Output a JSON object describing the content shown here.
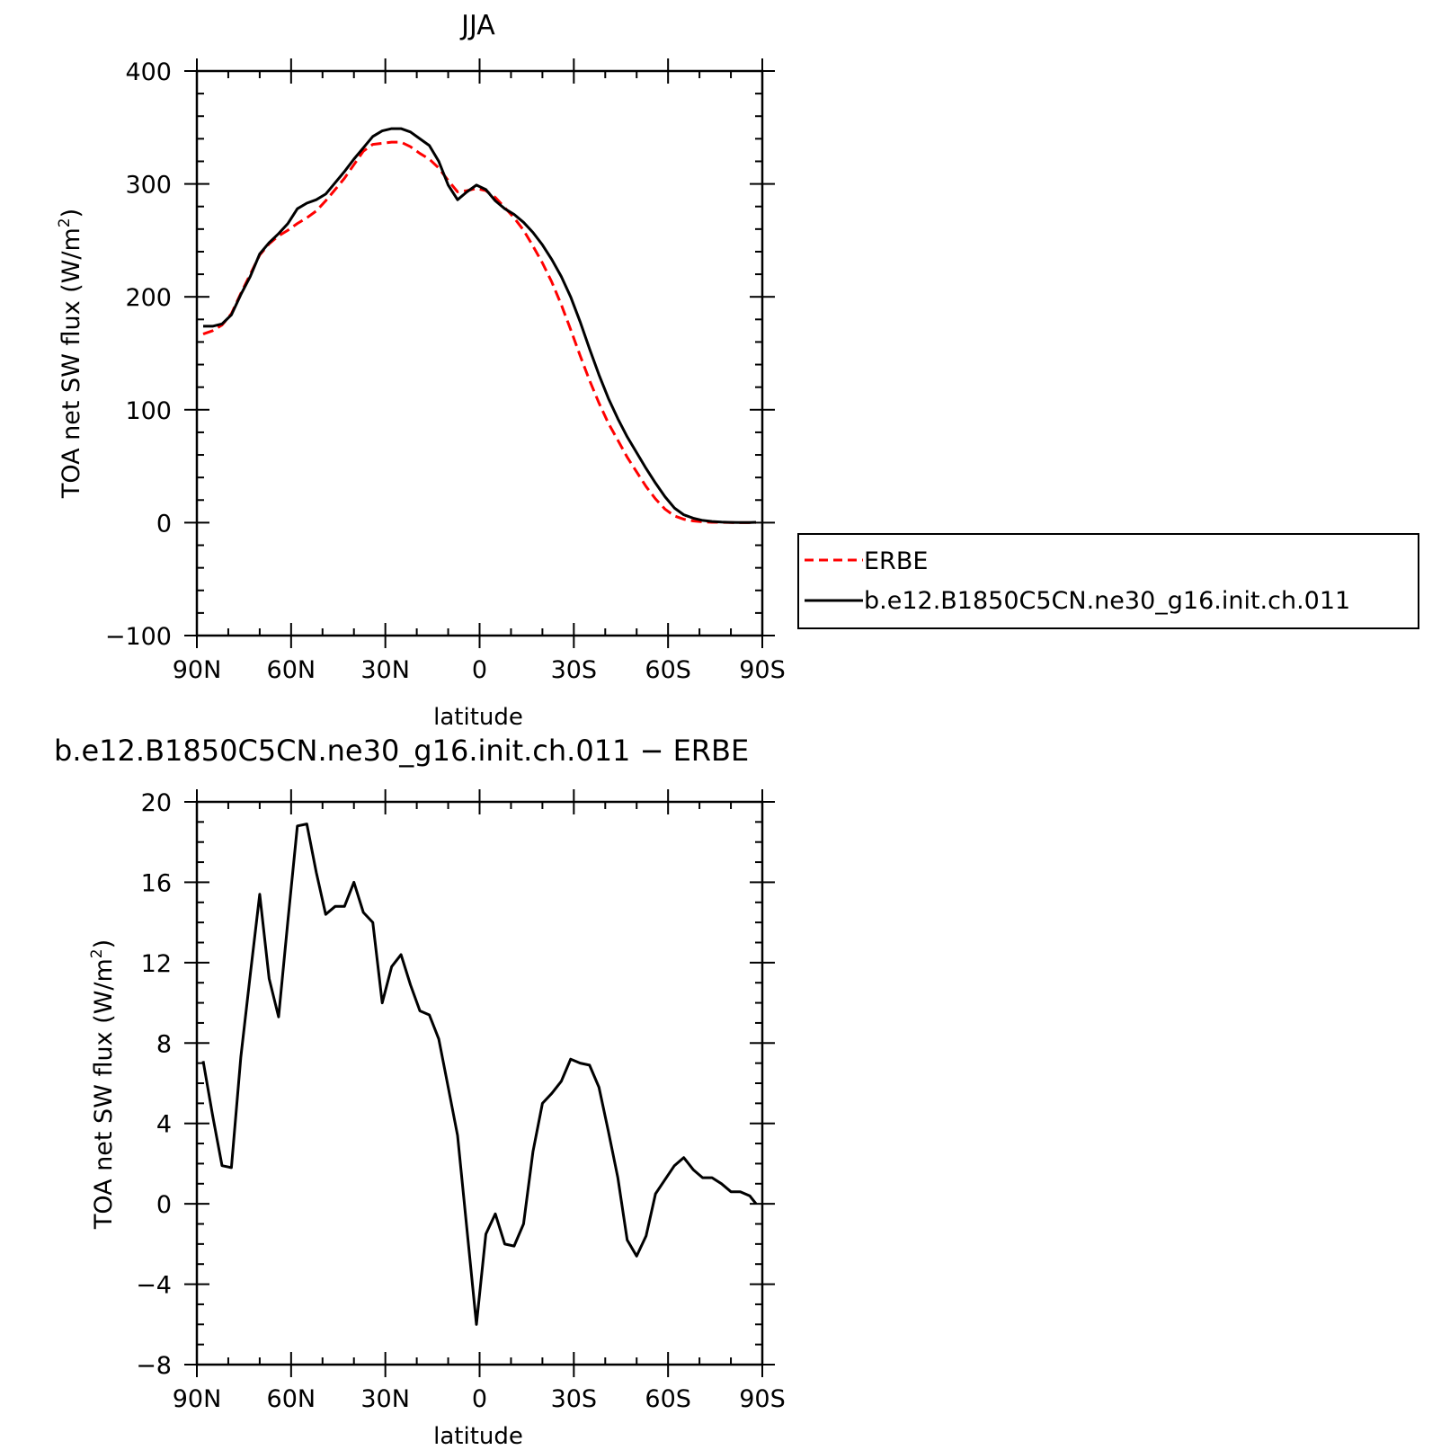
{
  "chart_data": [
    {
      "type": "line",
      "title": "JJA",
      "xlabel": "latitude",
      "ylabel_main": "TOA net SW flux (W/m",
      "ylabel_sup": "2",
      "ylabel_close": ")",
      "xlim": [
        90,
        -90
      ],
      "ylim": [
        -100,
        400
      ],
      "x_ticks": [
        {
          "value": 90,
          "label": "90N"
        },
        {
          "value": 60,
          "label": "60N"
        },
        {
          "value": 30,
          "label": "30N"
        },
        {
          "value": 0,
          "label": "0"
        },
        {
          "value": -30,
          "label": "30S"
        },
        {
          "value": -60,
          "label": "60S"
        },
        {
          "value": -90,
          "label": "90S"
        }
      ],
      "y_ticks": [
        {
          "value": 400,
          "label": "400"
        },
        {
          "value": 300,
          "label": "300"
        },
        {
          "value": 200,
          "label": "200"
        },
        {
          "value": 100,
          "label": "100"
        },
        {
          "value": 0,
          "label": "0"
        },
        {
          "value": -100,
          "label": "−100"
        }
      ],
      "legend": {
        "position": "right",
        "entries": [
          {
            "label": "ERBE",
            "color": "#ff0000",
            "dash": true
          },
          {
            "label": "b.e12.B1850C5CN.ne30_g16.init.ch.011",
            "color": "#000000",
            "dash": false
          }
        ]
      },
      "series": [
        {
          "name": "ERBE",
          "color": "#ff0000",
          "style": "dashed",
          "x": [
            88,
            85,
            82,
            79,
            76,
            73,
            70,
            67,
            64,
            61,
            58,
            55,
            52,
            49,
            46,
            43,
            40,
            37,
            34,
            31,
            28,
            25,
            22,
            19,
            16,
            13,
            10,
            7,
            4,
            1,
            -2,
            -5,
            -8,
            -11,
            -14,
            -17,
            -20,
            -23,
            -26,
            -29,
            -32,
            -35,
            -38,
            -41,
            -44,
            -47,
            -50,
            -53,
            -56,
            -59,
            -62,
            -65,
            -68,
            -71,
            -74,
            -77,
            -80,
            -83,
            -86,
            -88
          ],
          "y": [
            167,
            170,
            175,
            185,
            203,
            220,
            237,
            247,
            254,
            259,
            265,
            270,
            276,
            285,
            295,
            305,
            317,
            329,
            335,
            336,
            337,
            337,
            333,
            327,
            322,
            314,
            303,
            293,
            294,
            296,
            294,
            288,
            279,
            270,
            259,
            245,
            230,
            213,
            193,
            171,
            148,
            126,
            106,
            88,
            73,
            58,
            45,
            32,
            21,
            12,
            6,
            3,
            1.5,
            0.7,
            0.3,
            0.2,
            0.1,
            0,
            0,
            0
          ]
        },
        {
          "name": "b.e12.B1850C5CN.ne30_g16.init.ch.011",
          "color": "#000000",
          "style": "solid",
          "x": [
            88,
            85,
            82,
            79,
            76,
            73,
            70,
            67,
            64,
            61,
            58,
            55,
            52,
            49,
            46,
            43,
            40,
            37,
            34,
            31,
            28,
            25,
            22,
            19,
            16,
            13,
            10,
            7,
            4,
            1,
            -2,
            -5,
            -8,
            -11,
            -14,
            -17,
            -20,
            -23,
            -26,
            -29,
            -32,
            -35,
            -38,
            -41,
            -44,
            -47,
            -50,
            -53,
            -56,
            -59,
            -62,
            -65,
            -68,
            -71,
            -74,
            -77,
            -80,
            -83,
            -86,
            -88
          ],
          "y": [
            174,
            174,
            176,
            184,
            202,
            218,
            238,
            248,
            256,
            265,
            278,
            283,
            286,
            291,
            301,
            311,
            322,
            332,
            342,
            347,
            349,
            349,
            346,
            340,
            334,
            320,
            299,
            286,
            293,
            299,
            295,
            285,
            278,
            273,
            266,
            257,
            246,
            233,
            218,
            200,
            178,
            154,
            131,
            110,
            92,
            76,
            62,
            48,
            35,
            23,
            13,
            7,
            4,
            2,
            1,
            0.5,
            0.2,
            0.1,
            0.1,
            0.3
          ]
        }
      ]
    },
    {
      "type": "line",
      "title": "b.e12.B1850C5CN.ne30_g16.init.ch.011 − ERBE",
      "xlabel": "latitude",
      "ylabel_main": "TOA net SW flux (W/m",
      "ylabel_sup": "2",
      "ylabel_close": ")",
      "xlim": [
        90,
        -90
      ],
      "ylim": [
        -8,
        20
      ],
      "x_ticks": [
        {
          "value": 90,
          "label": "90N"
        },
        {
          "value": 60,
          "label": "60N"
        },
        {
          "value": 30,
          "label": "30N"
        },
        {
          "value": 0,
          "label": "0"
        },
        {
          "value": -30,
          "label": "30S"
        },
        {
          "value": -60,
          "label": "60S"
        },
        {
          "value": -90,
          "label": "90S"
        }
      ],
      "y_ticks": [
        {
          "value": 20,
          "label": "20"
        },
        {
          "value": 16,
          "label": "16"
        },
        {
          "value": 12,
          "label": "12"
        },
        {
          "value": 8,
          "label": "8"
        },
        {
          "value": 4,
          "label": "4"
        },
        {
          "value": 0,
          "label": "0"
        },
        {
          "value": -4,
          "label": "−4"
        },
        {
          "value": -8,
          "label": "−8"
        }
      ],
      "series": [
        {
          "color": "#000000",
          "style": "solid",
          "x": [
            88,
            85,
            82,
            79,
            76,
            73,
            70,
            67,
            64,
            61,
            58,
            55,
            52,
            49,
            46,
            43,
            40,
            37,
            34,
            31,
            28,
            25,
            22,
            19,
            16,
            13,
            10,
            7,
            4,
            1,
            -2,
            -5,
            -8,
            -11,
            -14,
            -17,
            -20,
            -23,
            -26,
            -29,
            -32,
            -35,
            -38,
            -41,
            -44,
            -47,
            -50,
            -53,
            -56,
            -59,
            -62,
            -65,
            -68,
            -71,
            -74,
            -77,
            -80,
            -83,
            -86,
            -88
          ],
          "y": [
            7.1,
            4.4,
            1.9,
            1.8,
            7.3,
            11.4,
            15.4,
            11.2,
            9.3,
            14.1,
            18.8,
            18.9,
            16.5,
            14.4,
            14.8,
            14.8,
            16.0,
            14.5,
            14.0,
            10.0,
            11.8,
            12.4,
            10.9,
            9.6,
            9.4,
            8.2,
            5.8,
            3.4,
            -1.3,
            -6.0,
            -1.5,
            -0.5,
            -2.0,
            -2.1,
            -1.0,
            2.6,
            5.0,
            5.5,
            6.1,
            7.2,
            7.0,
            6.9,
            5.8,
            3.6,
            1.3,
            -1.8,
            -2.6,
            -1.6,
            0.5,
            1.2,
            1.9,
            2.3,
            1.7,
            1.3,
            1.3,
            1.0,
            0.6,
            0.6,
            0.4,
            0.0
          ]
        }
      ]
    }
  ]
}
